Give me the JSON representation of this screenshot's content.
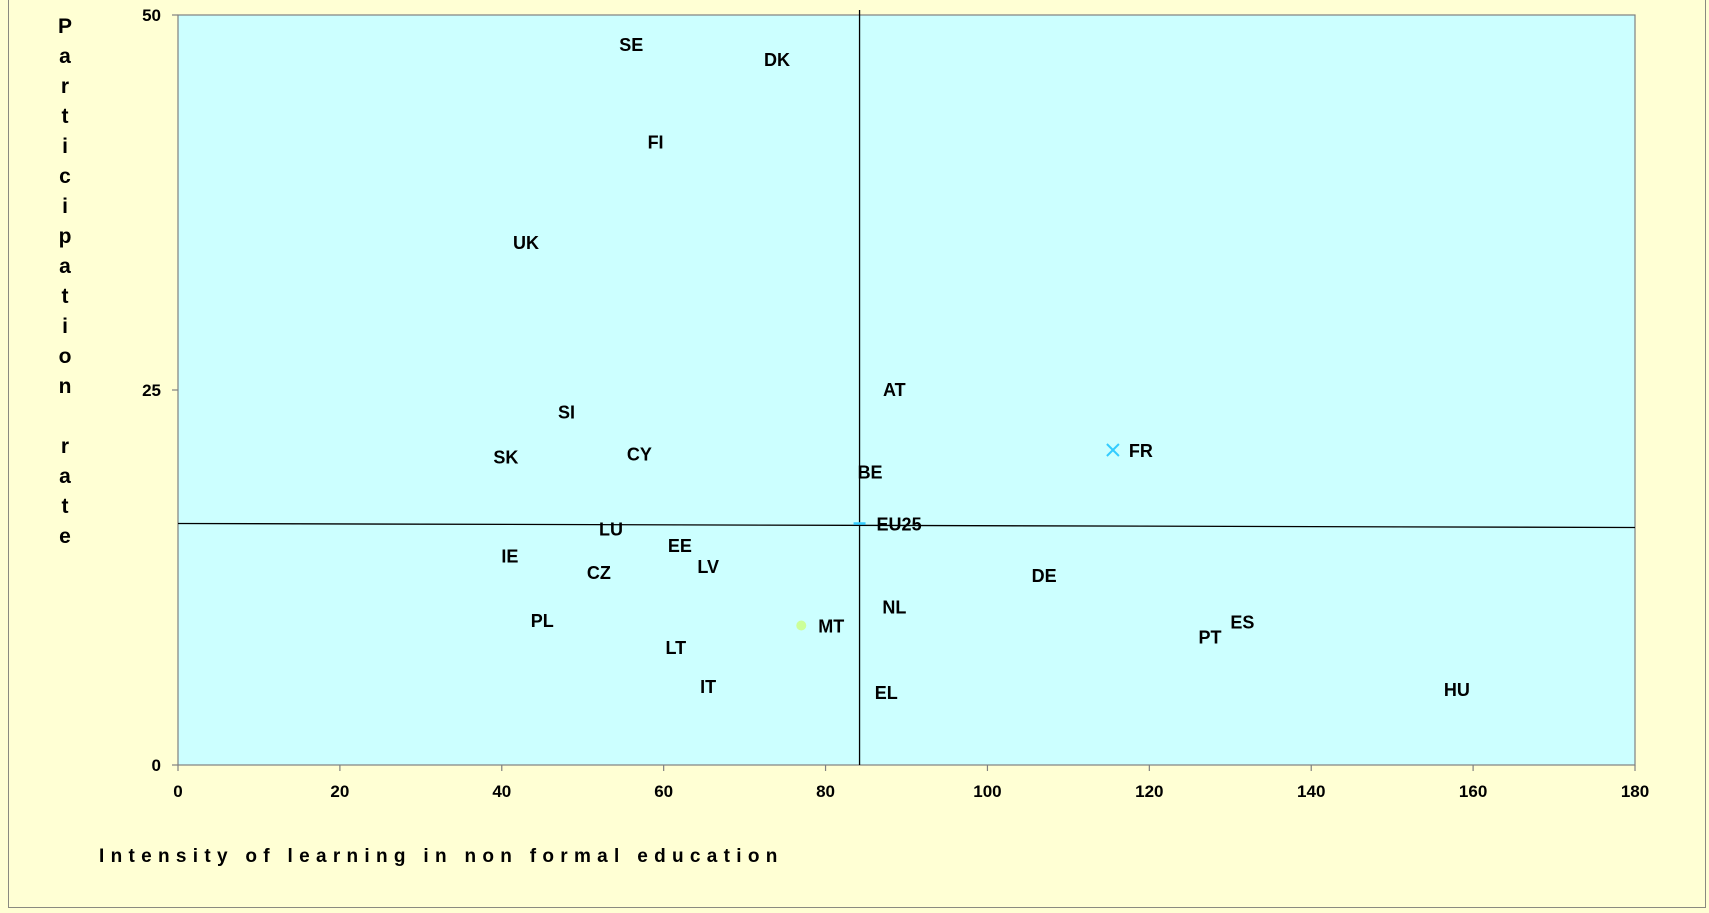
{
  "chart_data": {
    "type": "scatter",
    "title": "",
    "xlabel": "Intensity of learning in non formal education",
    "ylabel": "Participation rate",
    "xlim": [
      0,
      180
    ],
    "ylim": [
      0,
      50
    ],
    "x_ticks": [
      0,
      20,
      40,
      60,
      80,
      100,
      120,
      140,
      160,
      180
    ],
    "y_ticks": [
      0,
      25,
      50
    ],
    "grid": false,
    "legend": "none",
    "colors": {
      "page_background": "#FFFFD4",
      "plot_background": "#CCFFFF",
      "axis": "#808080",
      "reference_lines": "#000000",
      "fr_marker": "#33CCFF",
      "mt_marker": "#CCFF99",
      "eu25_marker": "#33CCFF"
    },
    "reference_lines": {
      "vertical_x": 84.2,
      "horizontal_y": 16.1
    },
    "points": [
      {
        "label": "SE",
        "x": 56,
        "y": 48
      },
      {
        "label": "DK",
        "x": 74,
        "y": 47
      },
      {
        "label": "FI",
        "x": 59,
        "y": 41.5
      },
      {
        "label": "UK",
        "x": 43,
        "y": 34.8
      },
      {
        "label": "AT",
        "x": 88.5,
        "y": 25
      },
      {
        "label": "SI",
        "x": 48,
        "y": 23.5
      },
      {
        "label": "SK",
        "x": 40.5,
        "y": 20.5
      },
      {
        "label": "CY",
        "x": 57,
        "y": 20.7
      },
      {
        "label": "FR",
        "x": 115.5,
        "y": 21
      },
      {
        "label": "BE",
        "x": 85.5,
        "y": 19.5
      },
      {
        "label": "EU25",
        "x": 84.2,
        "y": 16.1
      },
      {
        "label": "LU",
        "x": 53.5,
        "y": 15.7
      },
      {
        "label": "EE",
        "x": 62,
        "y": 14.6
      },
      {
        "label": "IE",
        "x": 41,
        "y": 13.9
      },
      {
        "label": "LV",
        "x": 65.5,
        "y": 13.2
      },
      {
        "label": "CZ",
        "x": 52,
        "y": 12.8
      },
      {
        "label": "DE",
        "x": 107,
        "y": 12.6
      },
      {
        "label": "NL",
        "x": 88.5,
        "y": 10.5
      },
      {
        "label": "ES",
        "x": 131.5,
        "y": 9.5
      },
      {
        "label": "PL",
        "x": 45,
        "y": 9.6
      },
      {
        "label": "MT",
        "x": 77,
        "y": 9.3
      },
      {
        "label": "PT",
        "x": 127.5,
        "y": 8.5
      },
      {
        "label": "LT",
        "x": 61.5,
        "y": 7.8
      },
      {
        "label": "IT",
        "x": 65.5,
        "y": 5.2
      },
      {
        "label": "EL",
        "x": 87.5,
        "y": 4.8
      },
      {
        "label": "HU",
        "x": 158,
        "y": 5
      }
    ]
  }
}
